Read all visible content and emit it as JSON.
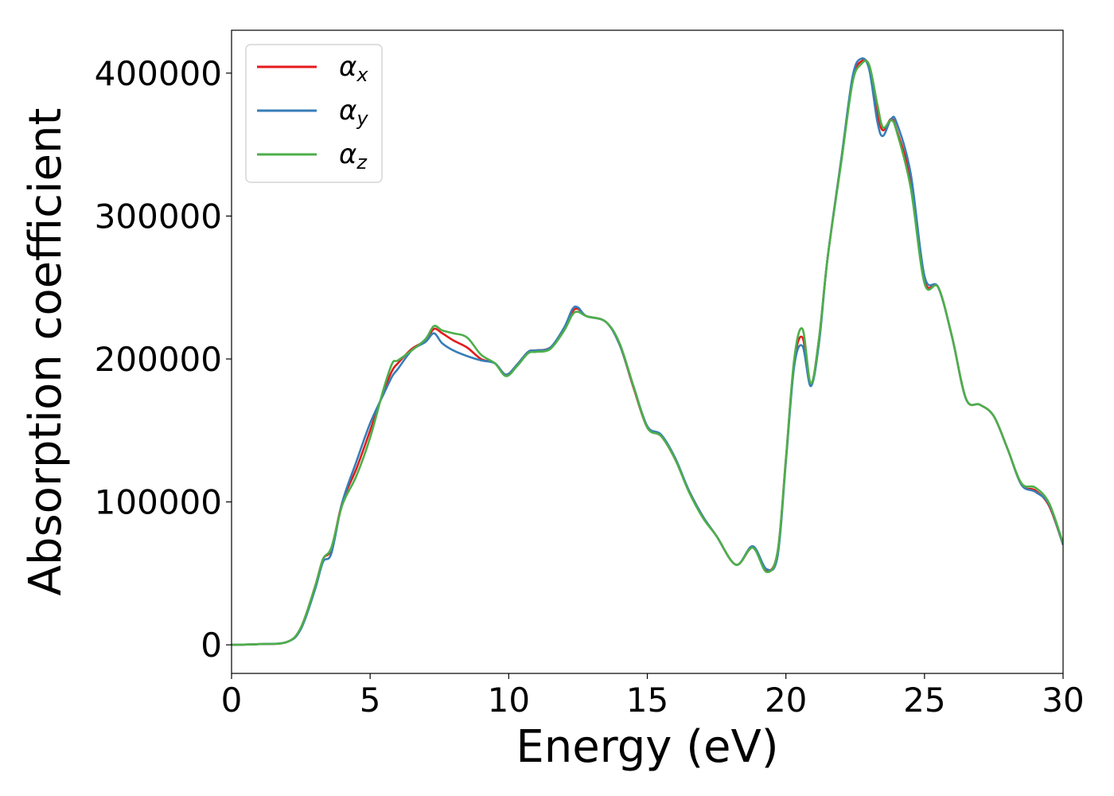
{
  "chart_data": {
    "type": "line",
    "xlabel": "Energy (eV)",
    "ylabel": "Absorption coefficient",
    "xlim": [
      0,
      30
    ],
    "ylim": [
      -20000,
      430000
    ],
    "xticks": [
      0,
      5,
      10,
      15,
      20,
      25,
      30
    ],
    "yticks": [
      0,
      100000,
      200000,
      300000,
      400000
    ],
    "grid": false,
    "legend_position": "top-left",
    "series": [
      {
        "name": "α_x",
        "label_main": "α",
        "label_sub": "x",
        "color": "#e41a1c",
        "x": [
          0,
          1,
          2,
          2.5,
          3,
          3.3,
          3.6,
          4,
          4.5,
          5,
          5.5,
          5.8,
          6,
          6.5,
          7,
          7.3,
          7.6,
          8,
          8.5,
          9,
          9.5,
          9.9,
          10.3,
          10.7,
          11,
          11.5,
          12,
          12.3,
          12.5,
          12.8,
          13.5,
          14,
          14.5,
          15,
          15.5,
          16,
          16.5,
          17,
          17.5,
          18.2,
          18.8,
          19.3,
          19.7,
          20,
          20.3,
          20.6,
          20.9,
          21.2,
          21.5,
          22,
          22.4,
          22.7,
          23,
          23.3,
          23.5,
          23.8,
          24,
          24.5,
          25,
          25.5,
          26,
          26.5,
          27,
          27.5,
          28,
          28.5,
          29,
          29.5,
          30
        ],
        "y": [
          0,
          500,
          2000,
          12000,
          40000,
          60000,
          67000,
          100000,
          123000,
          150000,
          178000,
          192000,
          197000,
          207000,
          213000,
          221000,
          218000,
          213000,
          208000,
          200000,
          197000,
          189000,
          196000,
          205000,
          206000,
          208000,
          220000,
          233000,
          235000,
          230000,
          226000,
          210000,
          180000,
          152000,
          146000,
          130000,
          108000,
          90000,
          76000,
          56000,
          68000,
          52000,
          65000,
          130000,
          198000,
          215000,
          182000,
          215000,
          270000,
          340000,
          395000,
          408000,
          405000,
          372000,
          360000,
          368000,
          360000,
          325000,
          255000,
          250000,
          215000,
          172000,
          168000,
          160000,
          137000,
          112000,
          108000,
          97000,
          70000
        ]
      },
      {
        "name": "α_y",
        "label_main": "α",
        "label_sub": "y",
        "color": "#377eb8",
        "x": [
          0,
          1,
          2,
          2.5,
          3,
          3.3,
          3.6,
          4,
          4.5,
          5,
          5.5,
          5.8,
          6,
          6.5,
          7,
          7.3,
          7.6,
          8,
          8.5,
          9,
          9.5,
          9.9,
          10.3,
          10.7,
          11,
          11.5,
          12,
          12.3,
          12.5,
          12.8,
          13.5,
          14,
          14.5,
          15,
          15.5,
          16,
          16.5,
          17,
          17.5,
          18.2,
          18.8,
          19.3,
          19.7,
          20,
          20.3,
          20.6,
          20.9,
          21.2,
          21.5,
          22,
          22.4,
          22.7,
          23,
          23.3,
          23.5,
          23.8,
          24,
          24.5,
          25,
          25.5,
          26,
          26.5,
          27,
          27.5,
          28,
          28.5,
          29,
          29.5,
          30
        ],
        "y": [
          0,
          500,
          2000,
          11000,
          38000,
          58000,
          64000,
          100000,
          128000,
          155000,
          176000,
          188000,
          193000,
          206000,
          212000,
          218000,
          211000,
          206000,
          202000,
          199000,
          197000,
          189000,
          196000,
          205000,
          206000,
          208000,
          222000,
          235000,
          236000,
          230000,
          226000,
          210000,
          181000,
          153000,
          147000,
          131000,
          108000,
          90000,
          76000,
          56000,
          69000,
          53000,
          62000,
          128000,
          195000,
          209000,
          181000,
          212000,
          270000,
          340000,
          397000,
          410000,
          403000,
          366000,
          356000,
          368000,
          365000,
          330000,
          258000,
          250000,
          215000,
          172000,
          168000,
          160000,
          137000,
          112000,
          107000,
          98000,
          70000
        ]
      },
      {
        "name": "α_z",
        "label_main": "α",
        "label_sub": "z",
        "color": "#4daf4a",
        "x": [
          0,
          1,
          2,
          2.5,
          3,
          3.3,
          3.6,
          4,
          4.5,
          5,
          5.5,
          5.8,
          6,
          6.5,
          7,
          7.3,
          7.6,
          8,
          8.5,
          9,
          9.5,
          9.9,
          10.3,
          10.7,
          11,
          11.5,
          12,
          12.3,
          12.5,
          12.8,
          13.5,
          14,
          14.5,
          15,
          15.5,
          16,
          16.5,
          17,
          17.5,
          18.2,
          18.8,
          19.3,
          19.7,
          20,
          20.3,
          20.6,
          20.9,
          21.2,
          21.5,
          22,
          22.4,
          22.7,
          23,
          23.3,
          23.5,
          23.8,
          24,
          24.5,
          25,
          25.5,
          26,
          26.5,
          27,
          27.5,
          28,
          28.5,
          29,
          29.5,
          30
        ],
        "y": [
          0,
          500,
          2000,
          12000,
          40000,
          60000,
          68000,
          98000,
          118000,
          145000,
          180000,
          197000,
          199000,
          206000,
          214000,
          223000,
          220000,
          218000,
          215000,
          203000,
          197000,
          188000,
          195000,
          204000,
          205000,
          207000,
          220000,
          231000,
          233000,
          230000,
          226000,
          211000,
          181000,
          152000,
          146000,
          130000,
          107000,
          89000,
          76000,
          56000,
          68000,
          51000,
          65000,
          130000,
          200000,
          221000,
          183000,
          215000,
          270000,
          338000,
          393000,
          406000,
          406000,
          378000,
          362000,
          367000,
          359000,
          320000,
          253000,
          250000,
          215000,
          172000,
          168000,
          160000,
          137000,
          113000,
          110000,
          99000,
          71000
        ]
      }
    ]
  }
}
